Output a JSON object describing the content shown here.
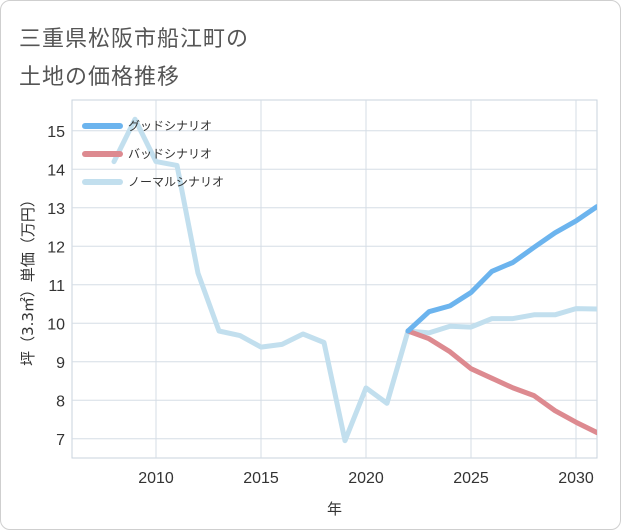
{
  "title_line1": "三重県松阪市船江町の",
  "title_line2": "土地の価格推移",
  "chart_data": {
    "type": "line",
    "xlabel": "年",
    "ylabel": "坪（3.3㎡）単価（万円）",
    "xlim": [
      2006,
      2031
    ],
    "ylim": [
      6.5,
      15.8
    ],
    "x_ticks": [
      2010,
      2015,
      2020,
      2025,
      2030
    ],
    "y_ticks": [
      7,
      8,
      9,
      10,
      11,
      12,
      13,
      14,
      15
    ],
    "legend_position": "top-left",
    "series": [
      {
        "name": "グッドシナリオ",
        "color": "#6cb4ee",
        "x": [
          2022,
          2023,
          2024,
          2025,
          2026,
          2027,
          2028,
          2029,
          2030,
          2031
        ],
        "values": [
          9.8,
          10.3,
          10.45,
          10.8,
          11.35,
          11.58,
          11.97,
          12.35,
          12.66,
          13.03
        ]
      },
      {
        "name": "バッドシナリオ",
        "color": "#dd8a90",
        "x": [
          2022,
          2023,
          2024,
          2025,
          2026,
          2027,
          2028,
          2029,
          2030,
          2031
        ],
        "values": [
          9.8,
          9.6,
          9.26,
          8.82,
          8.57,
          8.32,
          8.12,
          7.73,
          7.43,
          7.16
        ]
      },
      {
        "name": "ノーマルシナリオ",
        "color": "#c2dfee",
        "x": [
          2008,
          2009,
          2010,
          2011,
          2012,
          2013,
          2014,
          2015,
          2016,
          2017,
          2018,
          2019,
          2020,
          2021,
          2022,
          2023,
          2024,
          2025,
          2026,
          2027,
          2028,
          2029,
          2030,
          2031
        ],
        "values": [
          14.2,
          15.3,
          14.2,
          14.1,
          11.3,
          9.8,
          9.68,
          9.38,
          9.45,
          9.72,
          9.5,
          6.95,
          8.32,
          7.92,
          9.8,
          9.75,
          9.92,
          9.9,
          10.12,
          10.12,
          10.22,
          10.22,
          10.38,
          10.37
        ]
      }
    ]
  }
}
